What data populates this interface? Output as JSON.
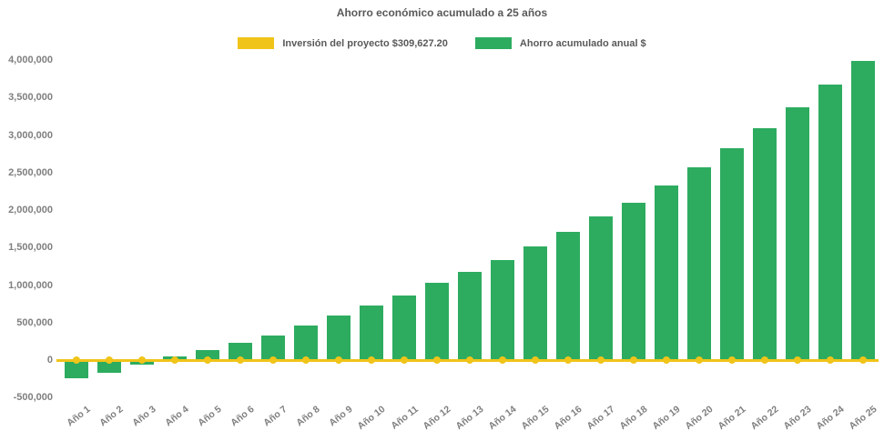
{
  "page": {
    "background": "#ffffff"
  },
  "title": "Ahorro económico acumulado a 25 años",
  "legend": {
    "items": [
      {
        "label": "Inversión del proyecto $309,627.20",
        "color": "#F0C419",
        "marker": "swatch"
      },
      {
        "label": "Ahorro acumulado anual $",
        "color": "#2DAC60",
        "marker": "swatch"
      }
    ]
  },
  "colors": {
    "bars": "#2DAC60",
    "investment_line": "#F0C419",
    "title_text": "#595959",
    "axis_text": "#7f7f7f",
    "background": "#ffffff"
  },
  "chart_data": {
    "type": "bar",
    "title": "Ahorro económico acumulado a 25 años",
    "categories": [
      "Año 1",
      "Año 2",
      "Año 3",
      "Año 4",
      "Año 5",
      "Año 6",
      "Año 7",
      "Año 8",
      "Año 9",
      "Año 10",
      "Año 11",
      "Año 12",
      "Año 13",
      "Año 14",
      "Año 15",
      "Año 16",
      "Año 17",
      "Año 18",
      "Año 19",
      "Año 20",
      "Año 21",
      "Año 22",
      "Año 23",
      "Año 24",
      "Año 25"
    ],
    "series": [
      {
        "name": "Ahorro acumulado anual $",
        "type": "bar",
        "color": "#2DAC60",
        "values": [
          -240000,
          -170000,
          -60000,
          50000,
          130000,
          225000,
          325000,
          460000,
          590000,
          725000,
          855000,
          1025000,
          1170000,
          1330000,
          1515000,
          1705000,
          1910000,
          2100000,
          2330000,
          2570000,
          2830000,
          3090000,
          3365000,
          3670000,
          3990000
        ]
      },
      {
        "name": "Inversión del proyecto $309,627.20",
        "type": "line",
        "color": "#F0C419",
        "marker": "circle",
        "investment_amount": 309627.2,
        "values_constant": 0
      }
    ],
    "xlabel": "",
    "ylabel": "",
    "ylim": [
      -500000,
      4000000
    ],
    "ytick_step": 500000,
    "ytick_labels": [
      "4,000,000",
      "3,500,000",
      "3,000,000",
      "2,500,000",
      "2,000,000",
      "1,500,000",
      "1,000,000",
      "500,000",
      "0",
      "-500,000"
    ],
    "xtick_rotation_deg": -38,
    "grid": false,
    "legend_position": "top-center"
  }
}
